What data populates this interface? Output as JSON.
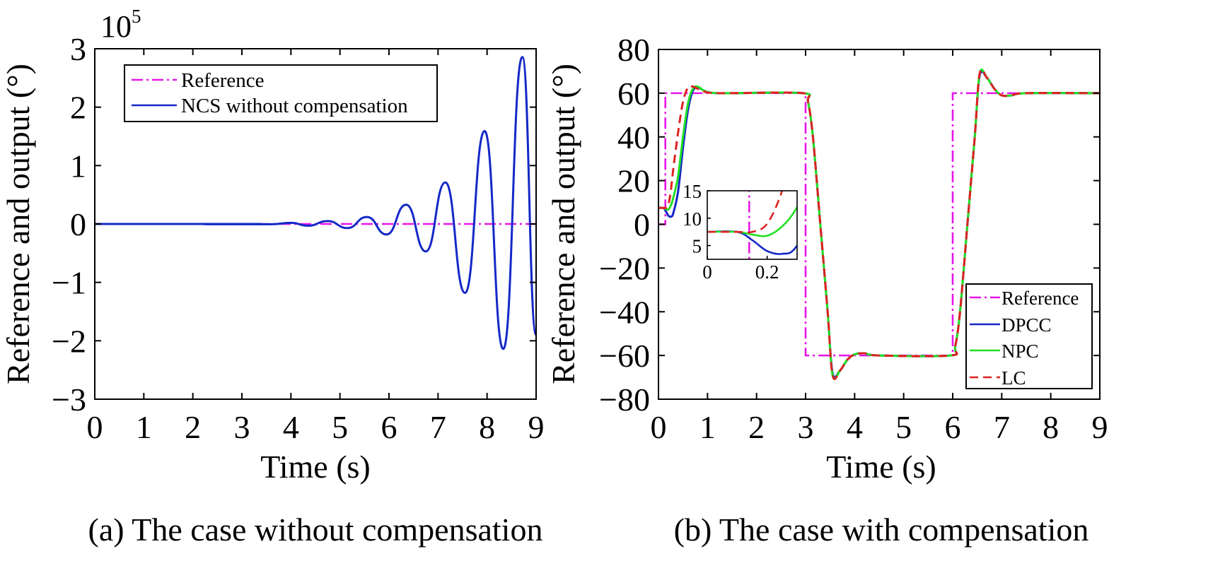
{
  "chart_data": [
    {
      "type": "line",
      "caption": "(a) The case without compensation",
      "xlabel": "Time (s)",
      "ylabel": "Reference and output (°)",
      "xlim": [
        0,
        9
      ],
      "ylim": [
        -3,
        3
      ],
      "y_multiplier": "10^5",
      "y_multiplier_base": "10",
      "y_multiplier_exp": "5",
      "xticks": [
        "0",
        "1",
        "2",
        "3",
        "4",
        "5",
        "6",
        "7",
        "8",
        "9"
      ],
      "yticks": [
        "3",
        "2",
        "1",
        "0",
        "−1",
        "−2",
        "−3"
      ],
      "legend_position": "top-left",
      "grid": false,
      "series": [
        {
          "name": "Reference",
          "color": "#e815e8",
          "style": "dash-dot",
          "x": [
            0,
            9
          ],
          "y": [
            0,
            0
          ]
        },
        {
          "name": "NCS without compensation",
          "color": "#1428c8",
          "style": "solid",
          "peaks_x": [
            3.6,
            4.0,
            4.35,
            4.75,
            5.15,
            5.55,
            5.95,
            6.35,
            6.75,
            7.15,
            7.55,
            7.95,
            8.33,
            8.72,
            9.0
          ],
          "peaks_y": [
            -0.005,
            0.02,
            -0.03,
            0.05,
            -0.07,
            0.12,
            -0.18,
            0.33,
            -0.47,
            0.71,
            -1.18,
            1.59,
            -2.14,
            2.86,
            -1.9
          ]
        }
      ]
    },
    {
      "type": "line",
      "caption": "(b) The case with compensation",
      "xlabel": "Time (s)",
      "ylabel": "Reference and output (°)",
      "xlim": [
        0,
        9
      ],
      "ylim": [
        -80,
        80
      ],
      "xticks": [
        "0",
        "1",
        "2",
        "3",
        "4",
        "5",
        "6",
        "7",
        "8",
        "9"
      ],
      "yticks": [
        "80",
        "60",
        "40",
        "20",
        "0",
        "−20",
        "−40",
        "−60",
        "−80"
      ],
      "legend_position": "bottom-right",
      "grid": false,
      "series": [
        {
          "name": "Reference",
          "color": "#e815e8",
          "style": "dash-dot",
          "x": [
            0,
            0.14,
            0.14,
            3.0,
            3.0,
            6.0,
            6.0,
            9.0
          ],
          "y": [
            0,
            0,
            60,
            60,
            -60,
            -60,
            60,
            60
          ]
        },
        {
          "name": "DPCC",
          "color": "#1428c8",
          "style": "solid",
          "x": [
            0,
            0.1,
            0.15,
            0.2,
            0.25,
            0.3,
            0.4,
            0.5,
            0.6,
            0.7,
            0.8,
            0.9,
            1.0,
            1.2,
            1.5,
            2.95,
            3.05,
            3.15,
            3.3,
            3.45,
            3.55,
            3.7,
            3.85,
            4.0,
            4.2,
            4.5,
            5.95,
            6.05,
            6.15,
            6.3,
            6.45,
            6.55,
            6.7,
            6.85,
            7.0,
            7.2,
            7.5,
            9.0
          ],
          "y": [
            7.5,
            7.5,
            6.0,
            4.0,
            3.5,
            5.0,
            15.0,
            35.0,
            52.0,
            61.0,
            62.5,
            61.5,
            60.5,
            60.0,
            60.0,
            60.0,
            56.0,
            40.0,
            0.0,
            -40.0,
            -68.0,
            -67.0,
            -62.0,
            -59.5,
            -59.0,
            -60.0,
            -60.0,
            -56.0,
            -40.0,
            0.0,
            40.0,
            68.0,
            67.0,
            62.0,
            59.0,
            59.0,
            60.0,
            60.0
          ]
        },
        {
          "name": "NPC",
          "color": "#22e022",
          "style": "solid",
          "x": [
            0,
            0.1,
            0.15,
            0.2,
            0.25,
            0.3,
            0.4,
            0.5,
            0.6,
            0.7,
            0.8,
            0.9,
            1.0,
            1.2,
            1.5,
            2.95,
            3.05,
            3.15,
            3.3,
            3.45,
            3.55,
            3.7,
            3.85,
            4.0,
            4.2,
            4.5,
            5.95,
            6.05,
            6.15,
            6.3,
            6.45,
            6.55,
            6.7,
            6.85,
            7.0,
            7.2,
            7.5,
            9.0
          ],
          "y": [
            7.5,
            7.5,
            7.0,
            6.8,
            8.5,
            12.0,
            22.0,
            40.0,
            55.0,
            62.0,
            63.0,
            61.5,
            60.5,
            60.0,
            60.0,
            60.0,
            56.0,
            40.0,
            0.0,
            -40.0,
            -69.0,
            -67.0,
            -62.0,
            -59.5,
            -59.0,
            -60.0,
            -60.0,
            -56.0,
            -40.0,
            0.0,
            40.0,
            69.0,
            67.0,
            62.0,
            59.0,
            59.0,
            60.0,
            60.0
          ]
        },
        {
          "name": "LC",
          "color": "#dd2222",
          "style": "dashed",
          "x": [
            0,
            0.1,
            0.15,
            0.2,
            0.25,
            0.3,
            0.4,
            0.5,
            0.6,
            0.7,
            0.8,
            0.9,
            1.0,
            1.2,
            1.5,
            2.95,
            3.05,
            3.15,
            3.3,
            3.45,
            3.55,
            3.7,
            3.85,
            4.0,
            4.2,
            4.5,
            5.95,
            6.05,
            6.15,
            6.3,
            6.45,
            6.55,
            6.7,
            6.85,
            7.0,
            7.2,
            7.5,
            9.0
          ],
          "y": [
            7.5,
            7.5,
            7.5,
            9.0,
            15.0,
            25.0,
            42.0,
            56.0,
            62.5,
            63.0,
            62.0,
            61.0,
            60.3,
            60.0,
            60.0,
            60.0,
            56.0,
            40.0,
            0.0,
            -40.0,
            -69.0,
            -67.0,
            -62.0,
            -59.5,
            -59.0,
            -60.0,
            -60.0,
            -56.0,
            -40.0,
            0.0,
            40.0,
            69.0,
            67.0,
            62.0,
            59.0,
            59.0,
            60.0,
            60.0
          ]
        }
      ],
      "inset": {
        "xlim": [
          0,
          0.3
        ],
        "ylim": [
          2.5,
          15
        ],
        "xticks": [
          "0",
          "0.2"
        ],
        "yticks": [
          "15",
          "10",
          "5"
        ]
      }
    }
  ]
}
